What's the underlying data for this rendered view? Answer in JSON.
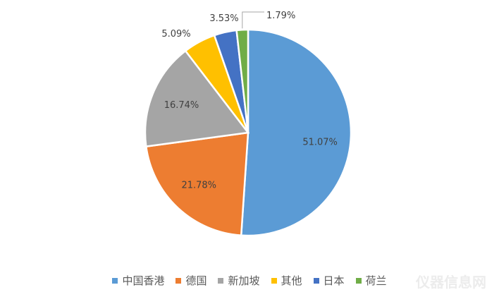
{
  "chart_data": {
    "type": "pie",
    "start_angle": "top, clockwise",
    "categories": [
      "中国香港",
      "德国",
      "新加坡",
      "其他",
      "日本",
      "荷兰"
    ],
    "values": [
      51.07,
      21.78,
      16.74,
      5.09,
      3.53,
      1.79
    ],
    "labels": [
      "51.07%",
      "21.78%",
      "16.74%",
      "5.09%",
      "3.53%",
      "1.79%"
    ],
    "colors": [
      "#5B9BD5",
      "#ED7D31",
      "#A5A5A5",
      "#FFC000",
      "#4472C4",
      "#70AD47"
    ],
    "legend_position": "bottom"
  },
  "watermark": "仪器信息网"
}
